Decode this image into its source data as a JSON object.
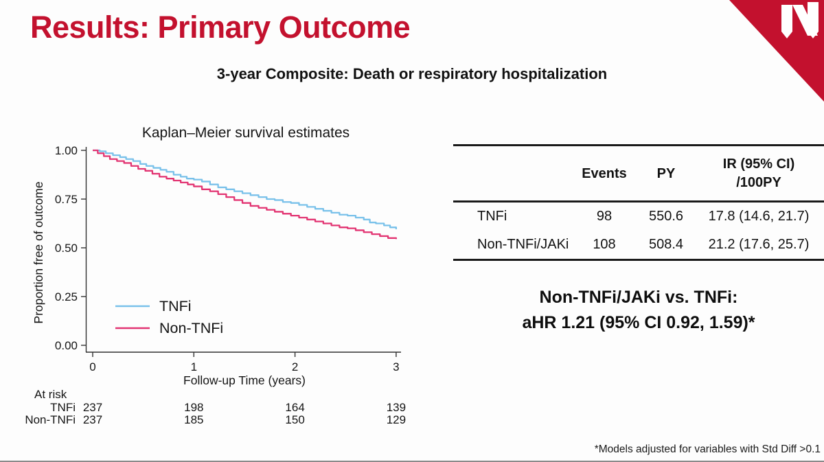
{
  "slide": {
    "title": "Results: Primary Outcome",
    "subtitle": "3-year Composite: Death or respiratory hospitalization",
    "footnote": "*Models adjusted for variables with Std Diff >0.1",
    "accent_color": "#C3112E",
    "logo_name": "unmc-n-logo"
  },
  "chart_data": {
    "type": "line",
    "variant": "kaplan-meier-step",
    "title": "Kaplan–Meier survival estimates",
    "xlabel": "Follow-up Time (years)",
    "ylabel": "Proportion free of outcome",
    "xlim": [
      0,
      3
    ],
    "ylim": [
      0,
      1
    ],
    "x_ticks": [
      0,
      1,
      2,
      3
    ],
    "y_ticks": [
      1.0,
      0.75,
      0.5,
      0.25,
      0.0
    ],
    "grid": false,
    "legend_position": "inside-lower-left",
    "series": [
      {
        "name": "TNFi",
        "color": "#79C1EA",
        "points": [
          [
            0,
            1.0
          ],
          [
            0.07,
            0.995
          ],
          [
            0.13,
            0.985
          ],
          [
            0.2,
            0.975
          ],
          [
            0.27,
            0.965
          ],
          [
            0.33,
            0.955
          ],
          [
            0.4,
            0.945
          ],
          [
            0.47,
            0.93
          ],
          [
            0.53,
            0.92
          ],
          [
            0.6,
            0.91
          ],
          [
            0.67,
            0.9
          ],
          [
            0.73,
            0.89
          ],
          [
            0.8,
            0.875
          ],
          [
            0.87,
            0.865
          ],
          [
            0.93,
            0.855
          ],
          [
            1.0,
            0.85
          ],
          [
            1.08,
            0.84
          ],
          [
            1.16,
            0.825
          ],
          [
            1.24,
            0.81
          ],
          [
            1.32,
            0.8
          ],
          [
            1.4,
            0.79
          ],
          [
            1.48,
            0.78
          ],
          [
            1.56,
            0.77
          ],
          [
            1.64,
            0.76
          ],
          [
            1.72,
            0.75
          ],
          [
            1.8,
            0.745
          ],
          [
            1.88,
            0.735
          ],
          [
            1.96,
            0.73
          ],
          [
            2.04,
            0.72
          ],
          [
            2.12,
            0.71
          ],
          [
            2.2,
            0.7
          ],
          [
            2.28,
            0.69
          ],
          [
            2.36,
            0.68
          ],
          [
            2.44,
            0.67
          ],
          [
            2.52,
            0.665
          ],
          [
            2.6,
            0.655
          ],
          [
            2.68,
            0.645
          ],
          [
            2.74,
            0.63
          ],
          [
            2.8,
            0.625
          ],
          [
            2.88,
            0.615
          ],
          [
            2.94,
            0.605
          ],
          [
            3.0,
            0.595
          ]
        ]
      },
      {
        "name": "Non-TNFi",
        "color": "#E23472",
        "points": [
          [
            0,
            1.0
          ],
          [
            0.05,
            0.985
          ],
          [
            0.11,
            0.97
          ],
          [
            0.17,
            0.955
          ],
          [
            0.24,
            0.945
          ],
          [
            0.31,
            0.935
          ],
          [
            0.38,
            0.92
          ],
          [
            0.45,
            0.905
          ],
          [
            0.52,
            0.895
          ],
          [
            0.59,
            0.88
          ],
          [
            0.66,
            0.865
          ],
          [
            0.73,
            0.855
          ],
          [
            0.8,
            0.845
          ],
          [
            0.87,
            0.835
          ],
          [
            0.94,
            0.825
          ],
          [
            1.0,
            0.815
          ],
          [
            1.08,
            0.8
          ],
          [
            1.16,
            0.79
          ],
          [
            1.24,
            0.775
          ],
          [
            1.32,
            0.76
          ],
          [
            1.4,
            0.745
          ],
          [
            1.48,
            0.73
          ],
          [
            1.56,
            0.715
          ],
          [
            1.64,
            0.705
          ],
          [
            1.72,
            0.695
          ],
          [
            1.8,
            0.685
          ],
          [
            1.88,
            0.675
          ],
          [
            1.96,
            0.665
          ],
          [
            2.04,
            0.655
          ],
          [
            2.12,
            0.645
          ],
          [
            2.2,
            0.635
          ],
          [
            2.28,
            0.625
          ],
          [
            2.36,
            0.615
          ],
          [
            2.44,
            0.605
          ],
          [
            2.52,
            0.6
          ],
          [
            2.6,
            0.59
          ],
          [
            2.68,
            0.58
          ],
          [
            2.76,
            0.57
          ],
          [
            2.84,
            0.56
          ],
          [
            2.92,
            0.55
          ],
          [
            3.0,
            0.545
          ]
        ]
      }
    ],
    "at_risk": {
      "title": "At risk",
      "rows": [
        {
          "label": "TNFi",
          "counts": [
            237,
            198,
            164,
            139
          ]
        },
        {
          "label": "Non-TNFi",
          "counts": [
            237,
            185,
            150,
            129
          ]
        }
      ]
    }
  },
  "results_table": {
    "col_events": "Events",
    "col_py": "PY",
    "col_ir_line1": "IR (95% CI)",
    "col_ir_line2": "/100PY",
    "rows": [
      {
        "label": "TNFi",
        "events": "98",
        "py": "550.6",
        "ir": "17.8 (14.6, 21.7)"
      },
      {
        "label": "Non-TNFi/JAKi",
        "events": "108",
        "py": "508.4",
        "ir": "21.2 (17.6, 25.7)"
      }
    ]
  },
  "hazard_ratio": {
    "line1": "Non-TNFi/JAKi vs. TNFi:",
    "line2": "aHR 1.21 (95% CI 0.92, 1.59)*"
  }
}
